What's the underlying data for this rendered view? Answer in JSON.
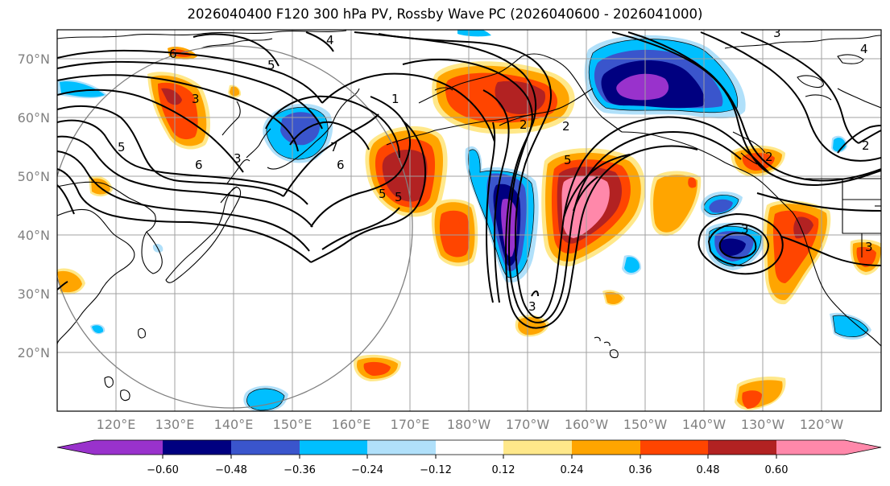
{
  "title": "2026040400 F120 300 hPa PV, Rossby Wave PC (2026040600 - 2026041000)",
  "colors": {
    "purple": "#9932cc",
    "navy": "#000080",
    "royal": "#3a55cc",
    "deepsky": "#00bfff",
    "lightblue": "#b0e0fa",
    "yellow": "#ffe88a",
    "orange": "#ffa500",
    "redorange": "#ff4500",
    "firebrick": "#b22222",
    "pink": "#ff88aa",
    "grid": "#a0a0a0",
    "coast": "#000000",
    "contour": "#000000",
    "circle": "#808080"
  },
  "lat_labels": [
    "70°N",
    "60°N",
    "50°N",
    "40°N",
    "30°N",
    "20°N"
  ],
  "lon_labels": [
    "120°E",
    "130°E",
    "140°E",
    "150°E",
    "160°E",
    "170°E",
    "180°W",
    "170°W",
    "160°W",
    "150°W",
    "140°W",
    "130°W",
    "120°W"
  ],
  "colorbar": {
    "ticks": [
      "−0.60",
      "−0.48",
      "−0.36",
      "−0.24",
      "−0.12",
      "0.12",
      "0.24",
      "0.36",
      "0.48",
      "0.60"
    ],
    "levels": [
      -0.6,
      -0.48,
      -0.36,
      -0.24,
      -0.12,
      0.12,
      0.24,
      0.36,
      0.48,
      0.6
    ]
  },
  "contour_labels": [
    "6",
    "4",
    "5",
    "3",
    "5",
    "6",
    "7",
    "6",
    "1",
    "2",
    "5",
    "5",
    "2",
    "3",
    "3",
    "2",
    "5",
    "4",
    "3",
    "2",
    "3",
    "3"
  ]
}
